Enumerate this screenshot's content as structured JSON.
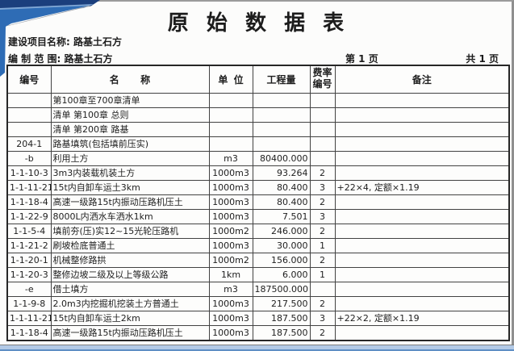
{
  "page": {
    "title": "原始数据表",
    "project_name_label": "建设项目名称: 路基土石方",
    "scope_label": "编 制 范 围: 路基土石方",
    "page_number": "第 1 页",
    "total_pages": "共 1 页"
  },
  "table": {
    "headers": {
      "code": "编号",
      "name": "名称",
      "unit": "单位",
      "quantity": "工程量",
      "rate_line1": "费率",
      "rate_line2": "编号",
      "note": "备注"
    },
    "rows": [
      {
        "code": "",
        "name": "第100章至700章清单",
        "unit": "",
        "qty": "",
        "rate": "",
        "note": ""
      },
      {
        "code": "",
        "name": "清单 第100章 总则",
        "unit": "",
        "qty": "",
        "rate": "",
        "note": ""
      },
      {
        "code": "",
        "name": "清单 第200章 路基",
        "unit": "",
        "qty": "",
        "rate": "",
        "note": ""
      },
      {
        "code": "204-1",
        "name": "路基填筑(包括填前压实)",
        "unit": "",
        "qty": "",
        "rate": "",
        "note": ""
      },
      {
        "code": "-b",
        "name": "利用土方",
        "unit": "m3",
        "qty": "80400.000",
        "rate": "",
        "note": ""
      },
      {
        "code": "1-1-10-3",
        "name": "3m3内装载机装土方",
        "unit": "1000m3",
        "qty": "93.264",
        "rate": "2",
        "note": ""
      },
      {
        "code": "1-1-11-21 改",
        "name": "15t内自卸车运土3km",
        "unit": "1000m3",
        "qty": "80.400",
        "rate": "3",
        "note": "+22×4, 定额×1.19"
      },
      {
        "code": "1-1-18-4",
        "name": "高速一级路15t内振动压路机压土",
        "unit": "1000m3",
        "qty": "80.400",
        "rate": "2",
        "note": ""
      },
      {
        "code": "1-1-22-9",
        "name": "8000L内洒水车洒水1km",
        "unit": "1000m3",
        "qty": "7.501",
        "rate": "3",
        "note": ""
      },
      {
        "code": "1-1-5-4",
        "name": "填前夯(压)实12~15光轮压路机",
        "unit": "1000m2",
        "qty": "246.000",
        "rate": "2",
        "note": ""
      },
      {
        "code": "1-1-21-2",
        "name": "刷坡检底普通土",
        "unit": "1000m3",
        "qty": "30.000",
        "rate": "1",
        "note": ""
      },
      {
        "code": "1-1-20-1",
        "name": "机械整修路拱",
        "unit": "1000m2",
        "qty": "156.000",
        "rate": "2",
        "note": ""
      },
      {
        "code": "1-1-20-3",
        "name": "整修边坡二级及以上等级公路",
        "unit": "1km",
        "qty": "6.000",
        "rate": "1",
        "note": ""
      },
      {
        "code": "-e",
        "name": "借土填方",
        "unit": "m3",
        "qty": "187500.000",
        "rate": "",
        "note": ""
      },
      {
        "code": "1-1-9-8",
        "name": "2.0m3内挖掘机挖装土方普通土",
        "unit": "1000m3",
        "qty": "217.500",
        "rate": "2",
        "note": ""
      },
      {
        "code": "1-1-11-21 改",
        "name": "15t内自卸车运土2km",
        "unit": "1000m3",
        "qty": "187.500",
        "rate": "3",
        "note": "+22×2, 定额×1.19"
      },
      {
        "code": "1-1-18-4",
        "name": "高速一级路15t内振动压路机压土",
        "unit": "1000m3",
        "qty": "187.500",
        "rate": "2",
        "note": ""
      }
    ]
  },
  "colors": {
    "corner_navy": "#1b3f7d",
    "corner_blue": "#2e6cb5",
    "corner_light_blue": "#7fa6d4",
    "strip_light_blue": "#b3cae6",
    "strip_edge_blue": "#5f8fc5",
    "grid_line": "#424242"
  }
}
